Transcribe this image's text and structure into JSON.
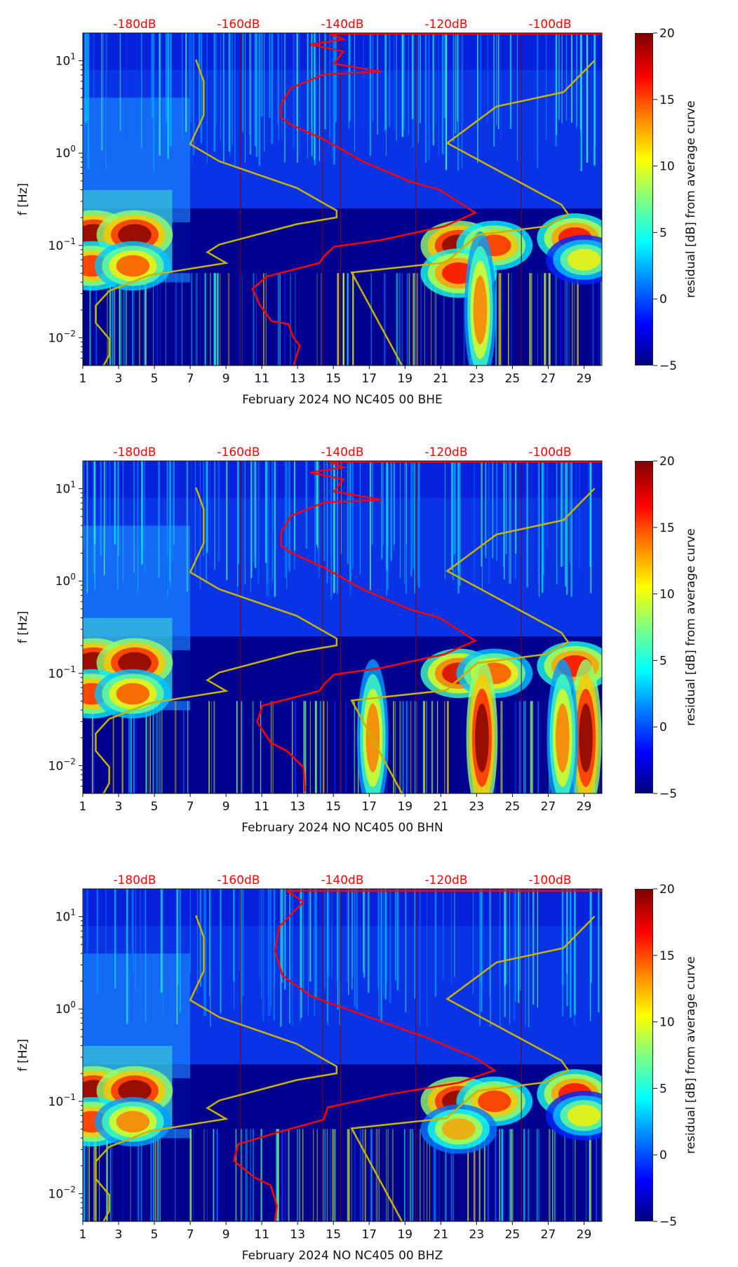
{
  "chart_data": [
    {
      "type": "heatmap",
      "xlabel": "February 2024 NO NC405 00 BHE",
      "ylabel": "f [Hz]",
      "colorbar_label": "residual [dB] from average curve",
      "xlim": [
        1,
        30
      ],
      "ylim_hz": [
        0.005,
        20
      ],
      "yscale": "log",
      "xticks": [
        "1",
        "3",
        "5",
        "7",
        "9",
        "11",
        "13",
        "15",
        "17",
        "19",
        "21",
        "23",
        "25",
        "27",
        "29"
      ],
      "yticks": [
        {
          "base": "10",
          "exp": "1",
          "logf": 1
        },
        {
          "base": "10",
          "exp": "0",
          "logf": 0
        },
        {
          "base": "10",
          "exp": "−1",
          "logf": -1
        },
        {
          "base": "10",
          "exp": "−2",
          "logf": -2
        }
      ],
      "top_axis": {
        "labels": [
          "-180dB",
          "-160dB",
          "-140dB",
          "-120dB",
          "-100dB"
        ],
        "values": [
          -180,
          -160,
          -140,
          -120,
          -100
        ],
        "range_db": [
          -190,
          -90
        ],
        "color": "#ff0000"
      },
      "colorbar": {
        "range": [
          -5,
          20
        ],
        "ticks": [
          "−5",
          "0",
          "5",
          "10",
          "15",
          "20"
        ],
        "values": [
          -5,
          0,
          5,
          10,
          15,
          20
        ]
      },
      "gap_days": [
        9.8,
        14.4,
        15.4,
        19.6,
        25.5
      ],
      "hotspots": [
        [
          1.6,
          0.13,
          20
        ],
        [
          3.9,
          0.13,
          20
        ],
        [
          1.5,
          0.06,
          16
        ],
        [
          3.8,
          0.06,
          15
        ],
        [
          22,
          0.1,
          20
        ],
        [
          24,
          0.1,
          16
        ],
        [
          22,
          0.05,
          17
        ],
        [
          28.5,
          0.12,
          17
        ],
        [
          29,
          0.07,
          11
        ],
        [
          23.2,
          0.02,
          14
        ]
      ],
      "red_curve": [
        [
          -90,
          1.292
        ],
        [
          -142.5,
          1.292
        ],
        [
          -139.8,
          1.233
        ],
        [
          -146.2,
          1.175
        ],
        [
          -139.8,
          1.101
        ],
        [
          -141.6,
          0.969
        ],
        [
          -132.4,
          0.881
        ],
        [
          -143.5,
          0.852
        ],
        [
          -149.9,
          0.705
        ],
        [
          -151.8,
          0.528
        ],
        [
          -151.8,
          0.381
        ],
        [
          -149.9,
          0.308
        ],
        [
          -143.5,
          0.146
        ],
        [
          -136.1,
          -0.089
        ],
        [
          -126.9,
          -0.309
        ],
        [
          -121.3,
          -0.397
        ],
        [
          -114.4,
          -0.647
        ],
        [
          -120.4,
          -0.794
        ],
        [
          -132.4,
          -0.941
        ],
        [
          -141.6,
          -1.014
        ],
        [
          -143.5,
          -1.117
        ],
        [
          -144.4,
          -1.19
        ],
        [
          -154.5,
          -1.337
        ],
        [
          -157.3,
          -1.469
        ],
        [
          -155.9,
          -1.646
        ],
        [
          -153.6,
          -1.822
        ],
        [
          -150.4,
          -1.851
        ],
        [
          -149.4,
          -1.998
        ],
        [
          -148.2,
          -2.086
        ],
        [
          -149.4,
          -2.301
        ]
      ]
    },
    {
      "type": "heatmap",
      "xlabel": "February 2024 NO NC405 00 BHN",
      "ylabel": "f [Hz]",
      "colorbar_label": "residual [dB] from average curve",
      "xlim": [
        1,
        30
      ],
      "ylim_hz": [
        0.005,
        20
      ],
      "yscale": "log",
      "xticks": [
        "1",
        "3",
        "5",
        "7",
        "9",
        "11",
        "13",
        "15",
        "17",
        "19",
        "21",
        "23",
        "25",
        "27",
        "29"
      ],
      "yticks": [
        {
          "base": "10",
          "exp": "1",
          "logf": 1
        },
        {
          "base": "10",
          "exp": "0",
          "logf": 0
        },
        {
          "base": "10",
          "exp": "−1",
          "logf": -1
        },
        {
          "base": "10",
          "exp": "−2",
          "logf": -2
        }
      ],
      "top_axis": {
        "labels": [
          "-180dB",
          "-160dB",
          "-140dB",
          "-120dB",
          "-100dB"
        ],
        "values": [
          -180,
          -160,
          -140,
          -120,
          -100
        ],
        "range_db": [
          -190,
          -90
        ],
        "color": "#ff0000"
      },
      "colorbar": {
        "range": [
          -5,
          20
        ],
        "ticks": [
          "−5",
          "0",
          "5",
          "10",
          "15",
          "20"
        ],
        "values": [
          -5,
          0,
          5,
          10,
          15,
          20
        ]
      },
      "gap_days": [
        9.8,
        14.4,
        15.4,
        19.6,
        25.5
      ],
      "hotspots": [
        [
          1.6,
          0.13,
          20
        ],
        [
          3.9,
          0.13,
          20
        ],
        [
          1.5,
          0.06,
          16
        ],
        [
          3.8,
          0.06,
          15
        ],
        [
          22,
          0.1,
          18
        ],
        [
          24,
          0.1,
          15
        ],
        [
          28.5,
          0.12,
          17
        ],
        [
          23.3,
          0.02,
          20
        ],
        [
          29.1,
          0.02,
          20
        ],
        [
          17.2,
          0.02,
          14
        ],
        [
          27.8,
          0.02,
          14
        ]
      ],
      "red_curve": [
        [
          -90,
          1.292
        ],
        [
          -142.5,
          1.292
        ],
        [
          -139.8,
          1.233
        ],
        [
          -146.2,
          1.175
        ],
        [
          -139.8,
          1.101
        ],
        [
          -141.6,
          0.969
        ],
        [
          -132.4,
          0.881
        ],
        [
          -143.5,
          0.852
        ],
        [
          -149.9,
          0.705
        ],
        [
          -151.8,
          0.528
        ],
        [
          -151.8,
          0.381
        ],
        [
          -149.9,
          0.308
        ],
        [
          -143.5,
          0.146
        ],
        [
          -136.1,
          -0.089
        ],
        [
          -126.9,
          -0.309
        ],
        [
          -121.3,
          -0.397
        ],
        [
          -114.4,
          -0.647
        ],
        [
          -120.4,
          -0.794
        ],
        [
          -132.4,
          -0.941
        ],
        [
          -141.6,
          -1.014
        ],
        [
          -143.5,
          -1.117
        ],
        [
          -144.4,
          -1.19
        ],
        [
          -155.4,
          -1.35
        ],
        [
          -156.4,
          -1.527
        ],
        [
          -153.8,
          -1.75
        ],
        [
          -150.7,
          -1.839
        ],
        [
          -147.5,
          -2.017
        ],
        [
          -147.2,
          -2.284
        ]
      ]
    },
    {
      "type": "heatmap",
      "xlabel": "February 2024 NO NC405 00 BHZ",
      "ylabel": "f [Hz]",
      "colorbar_label": "residual [dB] from average curve",
      "xlim": [
        1,
        30
      ],
      "ylim_hz": [
        0.005,
        20
      ],
      "yscale": "log",
      "xticks": [
        "1",
        "3",
        "5",
        "7",
        "9",
        "11",
        "13",
        "15",
        "17",
        "19",
        "21",
        "23",
        "25",
        "27",
        "29"
      ],
      "yticks": [
        {
          "base": "10",
          "exp": "1",
          "logf": 1
        },
        {
          "base": "10",
          "exp": "0",
          "logf": 0
        },
        {
          "base": "10",
          "exp": "−1",
          "logf": -1
        },
        {
          "base": "10",
          "exp": "−2",
          "logf": -2
        }
      ],
      "top_axis": {
        "labels": [
          "-180dB",
          "-160dB",
          "-140dB",
          "-120dB",
          "-100dB"
        ],
        "values": [
          -180,
          -160,
          -140,
          -120,
          -100
        ],
        "range_db": [
          -190,
          -90
        ],
        "color": "#ff0000"
      },
      "colorbar": {
        "range": [
          -5,
          20
        ],
        "ticks": [
          "−5",
          "0",
          "5",
          "10",
          "15",
          "20"
        ],
        "values": [
          -5,
          0,
          5,
          10,
          15,
          20
        ]
      },
      "gap_days": [
        9.8,
        14.4,
        15.4,
        19.6,
        25.5
      ],
      "hotspots": [
        [
          1.6,
          0.13,
          20
        ],
        [
          3.9,
          0.13,
          20
        ],
        [
          1.5,
          0.06,
          16
        ],
        [
          3.8,
          0.06,
          14
        ],
        [
          22,
          0.1,
          20
        ],
        [
          24,
          0.1,
          16
        ],
        [
          22,
          0.05,
          13
        ],
        [
          28.5,
          0.12,
          17
        ],
        [
          29,
          0.07,
          11
        ]
      ],
      "red_curve": [
        [
          -89.8,
          1.28
        ],
        [
          -150.7,
          1.28
        ],
        [
          -147.5,
          1.16
        ],
        [
          -152.2,
          0.89
        ],
        [
          -153,
          0.625
        ],
        [
          -151.5,
          0.358
        ],
        [
          -145.9,
          0.135
        ],
        [
          -134.9,
          -0.087
        ],
        [
          -123.8,
          -0.309
        ],
        [
          -114.3,
          -0.532
        ],
        [
          -110.7,
          -0.665
        ],
        [
          -117.5,
          -0.799
        ],
        [
          -131.7,
          -0.932
        ],
        [
          -142.8,
          -1.066
        ],
        [
          -143.6,
          -1.199
        ],
        [
          -152.2,
          -1.333
        ],
        [
          -160.1,
          -1.466
        ],
        [
          -160.9,
          -1.644
        ],
        [
          -157,
          -1.822
        ],
        [
          -153.8,
          -1.911
        ],
        [
          -152.6,
          -2.133
        ],
        [
          -153,
          -2.311
        ]
      ]
    }
  ],
  "noise_models": {
    "color": "#c8b400",
    "nlnm": [
      [
        -168.2,
        1.013
      ],
      [
        -166.7,
        0.778
      ],
      [
        -166.7,
        0.411
      ],
      [
        -169.3,
        0.096
      ],
      [
        -163.7,
        -0.089
      ],
      [
        -148.8,
        -0.377
      ],
      [
        -141.1,
        -0.623
      ],
      [
        -141.1,
        -0.697
      ],
      [
        -148.8,
        -0.77
      ],
      [
        -163.7,
        -0.991
      ],
      [
        -166,
        -1.073
      ],
      [
        -162.4,
        -1.19
      ],
      [
        -177.1,
        -1.323
      ],
      [
        -184.9,
        -1.493
      ],
      [
        -187.5,
        -1.652
      ],
      [
        -187.5,
        -1.84
      ],
      [
        -184.9,
        -2.013
      ],
      [
        -184.9,
        -2.189
      ],
      [
        -186,
        -2.301
      ]
    ],
    "nhnm": [
      [
        -91.4,
        1.004
      ],
      [
        -97.4,
        0.66
      ],
      [
        -110.3,
        0.505
      ],
      [
        -119.8,
        0.108
      ],
      [
        -97.8,
        -0.559
      ],
      [
        -96.5,
        -0.662
      ],
      [
        -100.9,
        -0.794
      ],
      [
        -114,
        -0.888
      ],
      [
        -120,
        -1.184
      ],
      [
        -138.2,
        -1.293
      ],
      [
        -128.5,
        -2.301
      ]
    ]
  },
  "curve_color": "#ff0000"
}
